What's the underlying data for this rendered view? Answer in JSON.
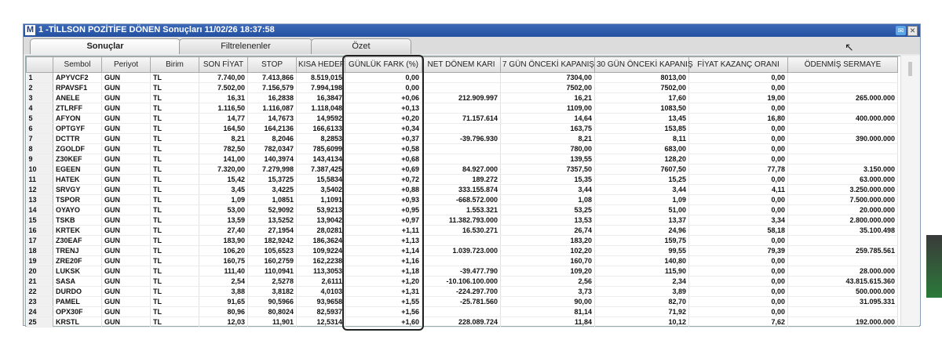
{
  "window": {
    "app_icon": "M",
    "title": "1 -TİLLSON POZİTİFE DÖNEN Sonuçları  11/02/26 18:37:58"
  },
  "tabs": [
    "Sonuçlar",
    "Filtrelenenler",
    "Özet"
  ],
  "columns": [
    "",
    "Sembol",
    "Periyot",
    "Birim",
    "SON FİYAT",
    "STOP",
    "KISA HEDEF",
    "GÜNLÜK FARK (%)",
    "NET DÖNEM KARI",
    "7 GÜN ÖNCEKİ KAPANIŞ",
    "30 GÜN ÖNCEKİ KAPANIŞ",
    "FİYAT KAZANÇ ORANI",
    "ÖDENMİŞ SERMAYE"
  ],
  "rows": [
    [
      "1",
      "APYVCF2",
      "GUN",
      "TL",
      "7.740,00",
      "7.413,866",
      "8.519,015",
      "0,00",
      "",
      "7304,00",
      "8013,00",
      "0,00",
      ""
    ],
    [
      "2",
      "RPAVSF1",
      "GUN",
      "TL",
      "7.502,00",
      "7.156,579",
      "7.994,198",
      "0,00",
      "",
      "7502,00",
      "7502,00",
      "0,00",
      ""
    ],
    [
      "3",
      "ANELE",
      "GUN",
      "TL",
      "16,31",
      "16,2838",
      "16,3847",
      "+0,06",
      "212.909.997",
      "16,21",
      "17,60",
      "19,00",
      "265.000.000"
    ],
    [
      "4",
      "ZTLRFF",
      "GUN",
      "TL",
      "1.116,50",
      "1.116,087",
      "1.118,048",
      "+0,13",
      "",
      "1109,00",
      "1083,50",
      "0,00",
      ""
    ],
    [
      "5",
      "AFYON",
      "GUN",
      "TL",
      "14,77",
      "14,7673",
      "14,9592",
      "+0,20",
      "71.157.614",
      "14,64",
      "13,45",
      "16,80",
      "400.000.000"
    ],
    [
      "6",
      "OPTGYF",
      "GUN",
      "TL",
      "164,50",
      "164,2136",
      "166,6133",
      "+0,34",
      "",
      "163,75",
      "153,85",
      "0,00",
      ""
    ],
    [
      "7",
      "DCTTR",
      "GUN",
      "TL",
      "8,21",
      "8,2046",
      "8,2853",
      "+0,37",
      "-39.796.930",
      "8,21",
      "8,11",
      "0,00",
      "390.000.000"
    ],
    [
      "8",
      "ZGOLDF",
      "GUN",
      "TL",
      "782,50",
      "782,0347",
      "785,6099",
      "+0,58",
      "",
      "780,00",
      "683,00",
      "0,00",
      ""
    ],
    [
      "9",
      "Z30KEF",
      "GUN",
      "TL",
      "141,00",
      "140,3974",
      "143,4134",
      "+0,68",
      "",
      "139,55",
      "128,20",
      "0,00",
      ""
    ],
    [
      "10",
      "EGEEN",
      "GUN",
      "TL",
      "7.320,00",
      "7.279,998",
      "7.387,425",
      "+0,69",
      "84.927.000",
      "7357,50",
      "7607,50",
      "77,78",
      "3.150.000"
    ],
    [
      "11",
      "HATEK",
      "GUN",
      "TL",
      "15,42",
      "15,3725",
      "15,5834",
      "+0,72",
      "189.272",
      "15,35",
      "15,25",
      "0,00",
      "63.000.000"
    ],
    [
      "12",
      "SRVGY",
      "GUN",
      "TL",
      "3,45",
      "3,4225",
      "3,5402",
      "+0,88",
      "333.155.874",
      "3,44",
      "3,44",
      "4,11",
      "3.250.000.000"
    ],
    [
      "13",
      "TSPOR",
      "GUN",
      "TL",
      "1,09",
      "1,0851",
      "1,1091",
      "+0,93",
      "-668.572.000",
      "1,08",
      "1,09",
      "0,00",
      "7.500.000.000"
    ],
    [
      "14",
      "OYAYO",
      "GUN",
      "TL",
      "53,00",
      "52,9092",
      "53,9213",
      "+0,95",
      "1.553.321",
      "53,25",
      "51,00",
      "0,00",
      "20.000.000"
    ],
    [
      "15",
      "TSKB",
      "GUN",
      "TL",
      "13,59",
      "13,5252",
      "13,9042",
      "+0,97",
      "11.382.793.000",
      "13,53",
      "13,37",
      "3,34",
      "2.800.000.000"
    ],
    [
      "16",
      "KRTEK",
      "GUN",
      "TL",
      "27,40",
      "27,1954",
      "28,0281",
      "+1,11",
      "16.530.271",
      "26,74",
      "24,96",
      "58,18",
      "35.100.498"
    ],
    [
      "17",
      "Z30EAF",
      "GUN",
      "TL",
      "183,90",
      "182,9242",
      "186,3624",
      "+1,13",
      "",
      "183,20",
      "159,75",
      "0,00",
      ""
    ],
    [
      "18",
      "TRENJ",
      "GUN",
      "TL",
      "106,20",
      "105,6523",
      "109,9224",
      "+1,14",
      "1.039.723.000",
      "102,20",
      "99,55",
      "79,39",
      "259.785.561"
    ],
    [
      "19",
      "ZRE20F",
      "GUN",
      "TL",
      "160,75",
      "160,2759",
      "162,2238",
      "+1,16",
      "",
      "160,70",
      "140,80",
      "0,00",
      ""
    ],
    [
      "20",
      "LUKSK",
      "GUN",
      "TL",
      "111,40",
      "110,0941",
      "113,3053",
      "+1,18",
      "-39.477.790",
      "109,20",
      "115,90",
      "0,00",
      "28.000.000"
    ],
    [
      "21",
      "SASA",
      "GUN",
      "TL",
      "2,54",
      "2,5278",
      "2,6111",
      "+1,20",
      "-10.106.100.000",
      "2,56",
      "2,34",
      "0,00",
      "43.815.615.360"
    ],
    [
      "22",
      "DURDO",
      "GUN",
      "TL",
      "3,88",
      "3,8182",
      "4,0103",
      "+1,31",
      "-224.297.700",
      "3,73",
      "3,89",
      "0,00",
      "500.000.000"
    ],
    [
      "23",
      "PAMEL",
      "GUN",
      "TL",
      "91,65",
      "90,5966",
      "93,9658",
      "+1,55",
      "-25.781.560",
      "90,00",
      "82,70",
      "0,00",
      "31.095.331"
    ],
    [
      "24",
      "OPX30F",
      "GUN",
      "TL",
      "80,96",
      "80,8024",
      "82,5937",
      "+1,56",
      "",
      "81,14",
      "71,92",
      "0,00",
      ""
    ],
    [
      "25",
      "KRSTL",
      "GUN",
      "TL",
      "12,03",
      "11,901",
      "12,5314",
      "+1,60",
      "228.089.724",
      "11,84",
      "10,12",
      "7,62",
      "192.000.000"
    ]
  ]
}
